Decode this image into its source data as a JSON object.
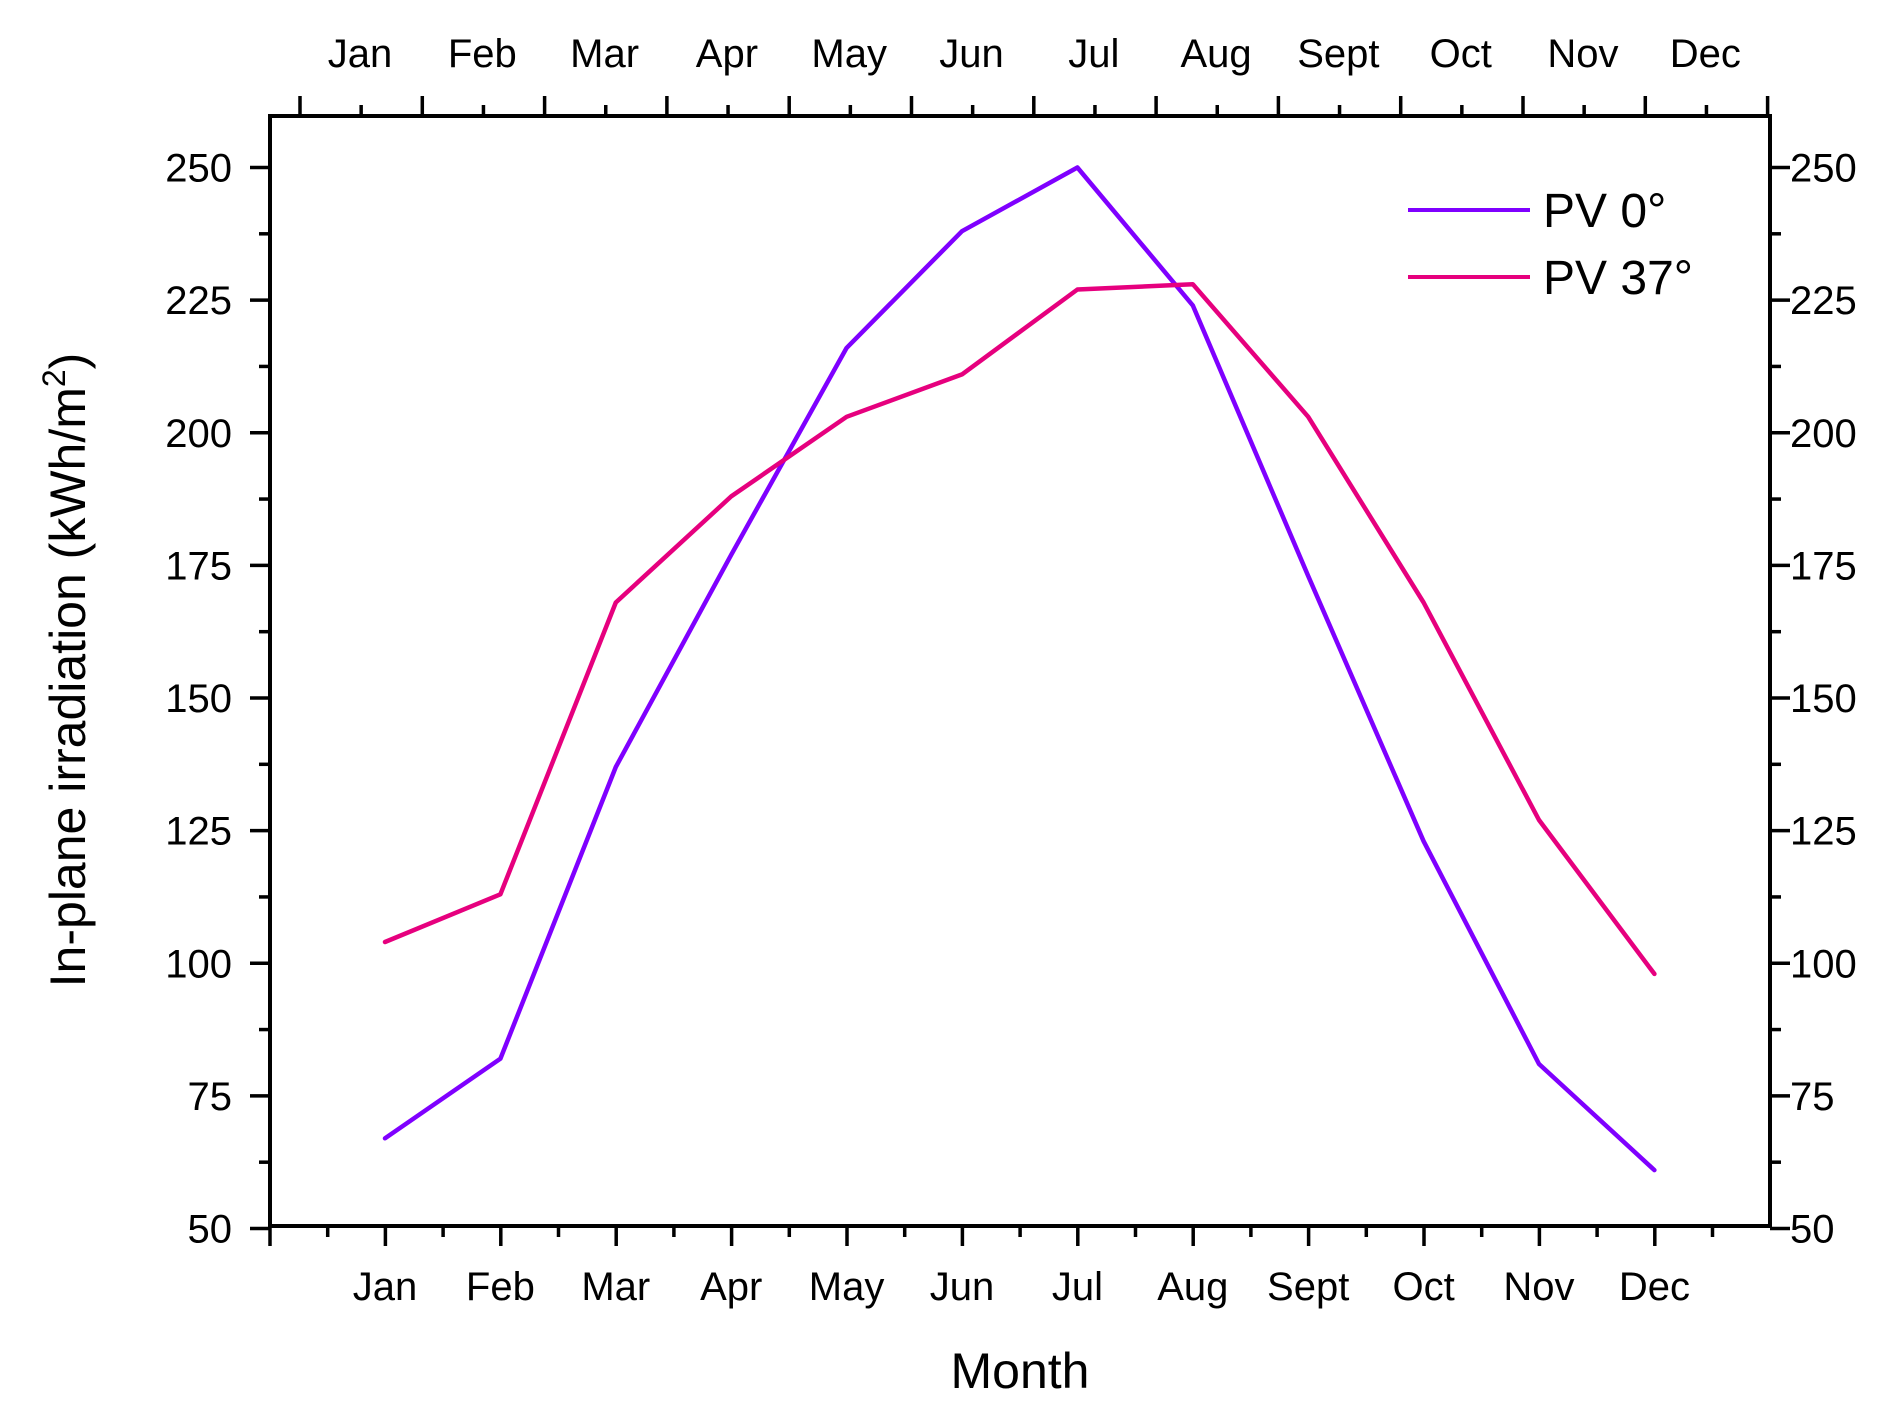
{
  "chart_data": {
    "type": "line",
    "categories": [
      "Jan",
      "Feb",
      "Mar",
      "Apr",
      "May",
      "Jun",
      "Jul",
      "Aug",
      "Sept",
      "Oct",
      "Nov",
      "Dec"
    ],
    "series": [
      {
        "name": "PV 0°",
        "color": "#7f00ff",
        "values": [
          67,
          82,
          137,
          177,
          216,
          238,
          250,
          224,
          173,
          123,
          81,
          61
        ]
      },
      {
        "name": "PV 37°",
        "color": "#e6007e",
        "values": [
          104,
          113,
          168,
          188,
          203,
          211,
          227,
          228,
          203,
          168,
          127,
          98
        ]
      }
    ],
    "xlabel": "Month",
    "ylabel": "In-plane irradiation (kWh/m",
    "ylabel_superscript": "2",
    "ylabel_close": ")",
    "ylim": [
      50,
      260
    ],
    "yticks": [
      50,
      75,
      100,
      125,
      150,
      175,
      200,
      225,
      250
    ],
    "ytick_labels": [
      "50",
      "75",
      "100",
      "125",
      "150",
      "175",
      "200",
      "225",
      "250"
    ],
    "top_axis_labels": [
      "Jan",
      "Feb",
      "Mar",
      "Apr",
      "May",
      "Jun",
      "Jul",
      "Aug",
      "Sept",
      "Oct",
      "Nov",
      "Dec"
    ],
    "legend_position": "top-right",
    "grid": false
  }
}
